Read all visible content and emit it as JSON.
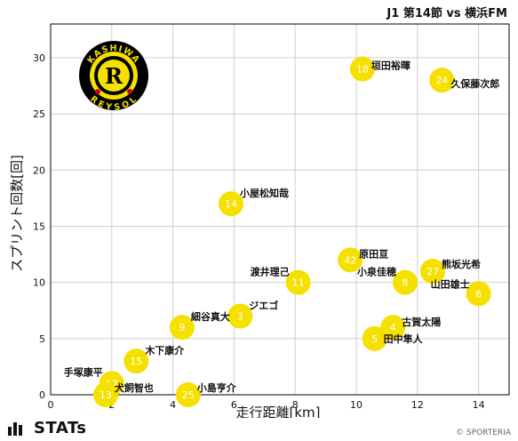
{
  "title": "J1 第14節 vs 横浜FM",
  "footer": {
    "brand": "STATs",
    "copyright": "© SPORTERIA"
  },
  "logo": {
    "text_top": "KASHIWA",
    "text_bottom": "REYSOL",
    "letter": "R",
    "colors": {
      "ring": "#000000",
      "fill": "#f5e000",
      "accent": "#d2001a"
    }
  },
  "colors": {
    "marker": "#f5e000",
    "marker_text": "#ffffff",
    "grid": "#d0d0d0",
    "axis": "#000000"
  },
  "chart_data": {
    "type": "scatter",
    "title": "J1 第14節 vs 横浜FM",
    "xlabel": "走行距離[km]",
    "ylabel": "スプリント回数[回]",
    "xlim": [
      0,
      15
    ],
    "ylim": [
      0,
      33
    ],
    "xticks": [
      0,
      2,
      4,
      6,
      8,
      10,
      12,
      14
    ],
    "yticks": [
      0,
      5,
      10,
      15,
      20,
      25,
      30
    ],
    "grid": true,
    "points": [
      {
        "number": "18",
        "name": "垣田裕暉",
        "x": 10.2,
        "y": 29
      },
      {
        "number": "24",
        "name": "久保藤次郎",
        "x": 12.8,
        "y": 28
      },
      {
        "number": "14",
        "name": "小屋松知哉",
        "x": 5.9,
        "y": 17
      },
      {
        "number": "42",
        "name": "原田亘",
        "x": 9.8,
        "y": 12
      },
      {
        "number": "27",
        "name": "熊坂光希",
        "x": 12.5,
        "y": 11
      },
      {
        "number": "11",
        "name": "渡井理己",
        "x": 8.1,
        "y": 10
      },
      {
        "number": "8",
        "name": "小泉佳穂",
        "x": 11.6,
        "y": 10
      },
      {
        "number": "6",
        "name": "山田雄士",
        "x": 14.0,
        "y": 9
      },
      {
        "number": "3",
        "name": "ジエゴ",
        "x": 6.2,
        "y": 7
      },
      {
        "number": "9",
        "name": "細谷真大",
        "x": 4.3,
        "y": 6
      },
      {
        "number": "4",
        "name": "古賀太陽",
        "x": 11.2,
        "y": 6
      },
      {
        "number": "5",
        "name": "田中隼人",
        "x": 10.6,
        "y": 5
      },
      {
        "number": "15",
        "name": "木下康介",
        "x": 2.8,
        "y": 3
      },
      {
        "number": "17",
        "name": "手塚康平",
        "x": 2.0,
        "y": 1
      },
      {
        "number": "13",
        "name": "犬飼智也",
        "x": 1.8,
        "y": 0
      },
      {
        "number": "25",
        "name": "小島亨介",
        "x": 4.5,
        "y": 0
      }
    ]
  }
}
